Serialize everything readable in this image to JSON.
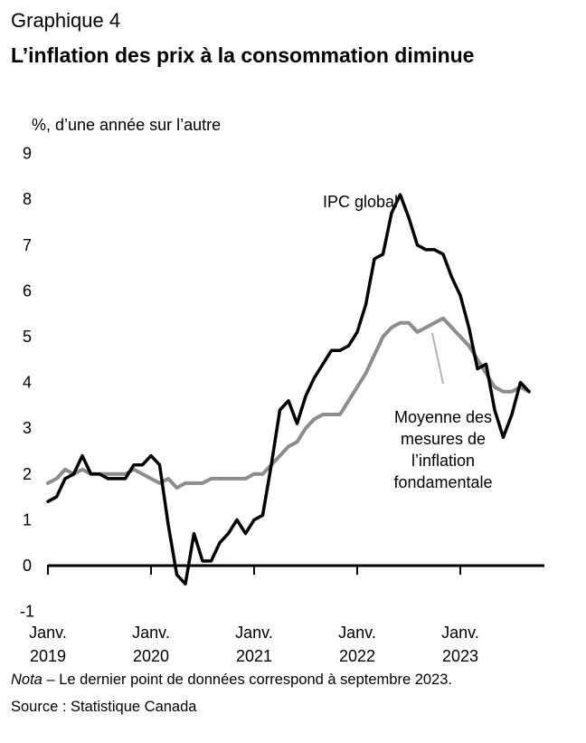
{
  "header": {
    "kicker": "Graphique 4",
    "title": "L’inflation des prix à la consommation diminue"
  },
  "footer": {
    "note_label": "Nota",
    "note_text": " – Le dernier point de données correspond à septembre 2023.",
    "source": "Source : Statistique Canada"
  },
  "colors": {
    "cpi": "#000000",
    "core": "#8c8c8c",
    "axis": "#000000"
  },
  "chart_data": {
    "type": "line",
    "ylabel": "%, d’une année sur l’autre",
    "ylim": [
      -1,
      9
    ],
    "yticks": [
      -1,
      0,
      1,
      2,
      3,
      4,
      5,
      6,
      7,
      8,
      9
    ],
    "x_start": "2019-01",
    "x_ticks": [
      {
        "month_index": 0,
        "line1": "Janv.",
        "line2": "2019"
      },
      {
        "month_index": 12,
        "line1": "Janv.",
        "line2": "2020"
      },
      {
        "month_index": 24,
        "line1": "Janv.",
        "line2": "2021"
      },
      {
        "month_index": 36,
        "line1": "Janv.",
        "line2": "2022"
      },
      {
        "month_index": 48,
        "line1": "Janv.",
        "line2": "2023"
      }
    ],
    "grid": false,
    "series": [
      {
        "name": "IPC global",
        "color": "#000000",
        "values": [
          1.4,
          1.5,
          1.9,
          2.0,
          2.4,
          2.0,
          2.0,
          1.9,
          1.9,
          1.9,
          2.2,
          2.2,
          2.4,
          2.2,
          0.9,
          -0.2,
          -0.4,
          0.7,
          0.1,
          0.1,
          0.5,
          0.7,
          1.0,
          0.7,
          1.0,
          1.1,
          2.2,
          3.4,
          3.6,
          3.1,
          3.7,
          4.1,
          4.4,
          4.7,
          4.7,
          4.8,
          5.1,
          5.7,
          6.7,
          6.8,
          7.7,
          8.1,
          7.6,
          7.0,
          6.9,
          6.9,
          6.8,
          6.3,
          5.9,
          5.2,
          4.3,
          4.4,
          3.4,
          2.8,
          3.3,
          4.0,
          3.8
        ]
      },
      {
        "name": "Moyenne des mesures de l’inflation fondamentale",
        "color": "#8c8c8c",
        "values": [
          1.8,
          1.9,
          2.1,
          2.0,
          2.1,
          2.0,
          2.0,
          2.0,
          2.0,
          2.0,
          2.1,
          2.0,
          1.9,
          1.8,
          1.9,
          1.7,
          1.8,
          1.8,
          1.8,
          1.9,
          1.9,
          1.9,
          1.9,
          1.9,
          2.0,
          2.0,
          2.2,
          2.4,
          2.6,
          2.7,
          3.0,
          3.2,
          3.3,
          3.3,
          3.3,
          3.6,
          3.9,
          4.2,
          4.6,
          5.0,
          5.2,
          5.3,
          5.3,
          5.1,
          5.2,
          5.3,
          5.4,
          5.2,
          5.0,
          4.8,
          4.5,
          4.2,
          3.9,
          3.8,
          3.8,
          3.9,
          3.8
        ]
      }
    ],
    "annotations": [
      {
        "series": 0,
        "lines": [
          "IPC global"
        ]
      },
      {
        "series": 1,
        "lines": [
          "Moyenne des",
          "mesures de",
          "l’inflation",
          "fondamentale"
        ]
      }
    ]
  }
}
